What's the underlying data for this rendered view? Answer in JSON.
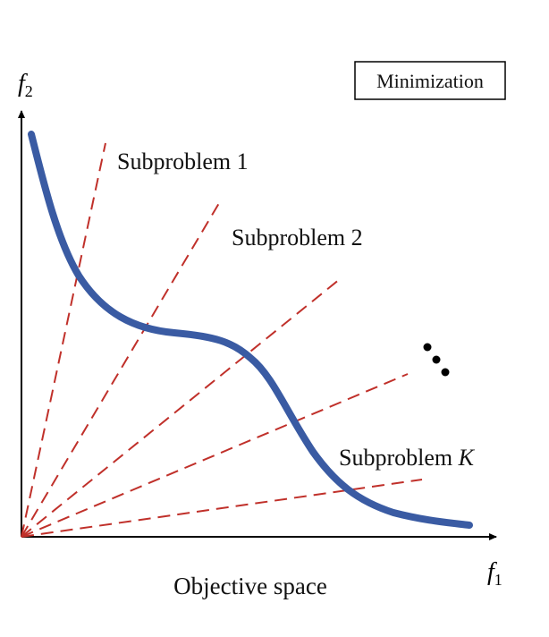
{
  "axes": {
    "x_label": "f",
    "x_subscript": "1",
    "y_label": "f",
    "y_subscript": "2"
  },
  "mode_box": {
    "label": "Minimization"
  },
  "subproblems": {
    "first_label": "Subproblem 1",
    "second_label": "Subproblem 2",
    "last_label_prefix": "Subproblem ",
    "last_label_var": "K",
    "ellipsis": "…"
  },
  "caption": "Objective space",
  "colors": {
    "pareto_front": "#3a5ba3",
    "weight_vectors": "#c0302a",
    "axes": "#000000"
  }
}
